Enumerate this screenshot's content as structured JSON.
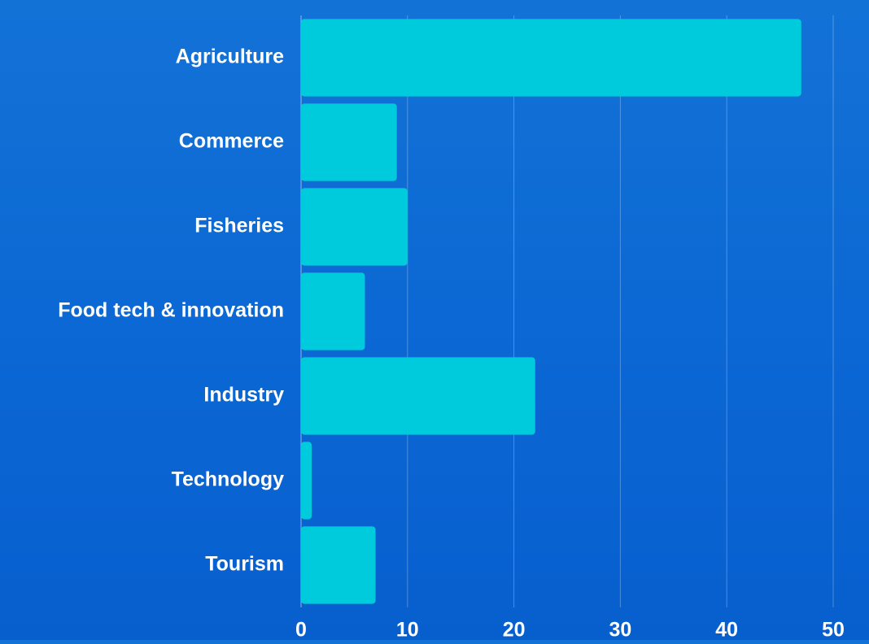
{
  "background_color": "#0b67d4",
  "bar_color": "#00cbdd",
  "chart_data": {
    "type": "bar",
    "orientation": "horizontal",
    "categories": [
      "Agriculture",
      "Commerce",
      "Fisheries",
      "Food tech & innovation",
      "Industry",
      "Technology",
      "Tourism"
    ],
    "values": [
      47,
      9,
      10,
      6,
      22,
      1,
      7
    ],
    "xlim": [
      0,
      50
    ],
    "xticks": [
      "0",
      "10",
      "20",
      "30",
      "40",
      "50"
    ],
    "grid": "vertical",
    "legend": "none"
  }
}
